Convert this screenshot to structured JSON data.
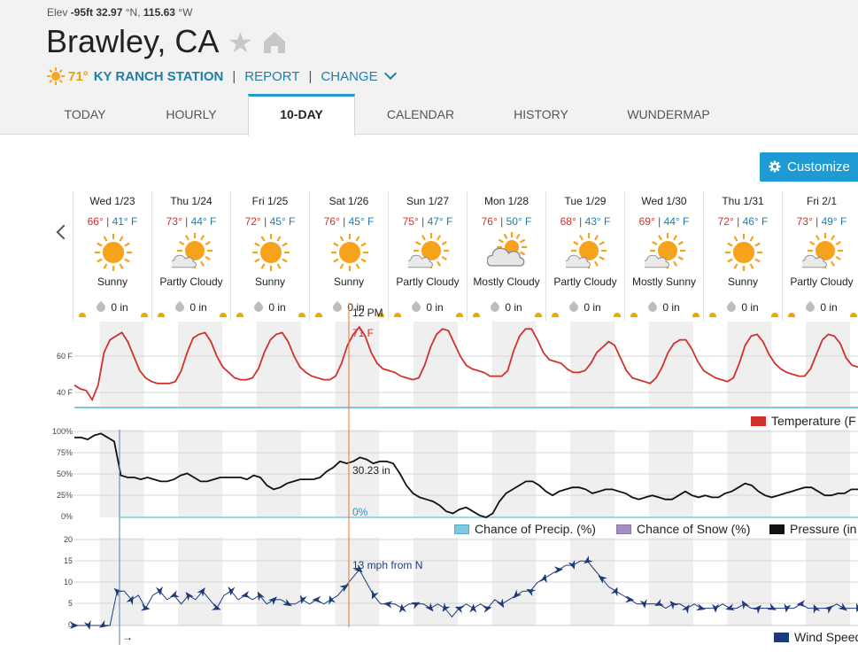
{
  "location": {
    "elev_label": "Elev",
    "elev": "-95ft",
    "lat": "32.97",
    "lat_dir": "°N,",
    "lon": "115.63",
    "lon_dir": "°W",
    "city": "Brawley, CA"
  },
  "station": {
    "temp": "71°",
    "name": "KY RANCH STATION",
    "report": "REPORT",
    "change": "CHANGE"
  },
  "tabs": [
    "TODAY",
    "HOURLY",
    "10-DAY",
    "CALENDAR",
    "HISTORY",
    "WUNDERMAP"
  ],
  "active_tab": "10-DAY",
  "customize_label": "Customize",
  "days": [
    {
      "date": "Wed 1/23",
      "hi": "66°",
      "lo": "41° F",
      "cond": "Sunny",
      "icon": "sunny-icon",
      "precip": "0 in"
    },
    {
      "date": "Thu 1/24",
      "hi": "73°",
      "lo": "44° F",
      "cond": "Partly Cloudy",
      "icon": "partly-cloudy-icon",
      "precip": "0 in"
    },
    {
      "date": "Fri 1/25",
      "hi": "72°",
      "lo": "45° F",
      "cond": "Sunny",
      "icon": "sunny-icon",
      "precip": "0 in"
    },
    {
      "date": "Sat 1/26",
      "hi": "76°",
      "lo": "45° F",
      "cond": "Sunny",
      "icon": "sunny-icon",
      "precip": "0 in"
    },
    {
      "date": "Sun 1/27",
      "hi": "75°",
      "lo": "47° F",
      "cond": "Partly Cloudy",
      "icon": "partly-cloudy-icon",
      "precip": "0 in"
    },
    {
      "date": "Mon 1/28",
      "hi": "76°",
      "lo": "50° F",
      "cond": "Mostly Cloudy",
      "icon": "mostly-cloudy-icon",
      "precip": "0 in"
    },
    {
      "date": "Tue 1/29",
      "hi": "68°",
      "lo": "43° F",
      "cond": "Partly Cloudy",
      "icon": "partly-cloudy-icon",
      "precip": "0 in"
    },
    {
      "date": "Wed 1/30",
      "hi": "69°",
      "lo": "44° F",
      "cond": "Mostly Sunny",
      "icon": "partly-cloudy-icon",
      "precip": "0 in"
    },
    {
      "date": "Thu 1/31",
      "hi": "72°",
      "lo": "46° F",
      "cond": "Sunny",
      "icon": "sunny-icon",
      "precip": "0 in"
    },
    {
      "date": "Fri 2/1",
      "hi": "73°",
      "lo": "49° F",
      "cond": "Partly Cloudy",
      "icon": "partly-cloudy-icon",
      "precip": "0 in"
    }
  ],
  "cursor": {
    "time": "12 PM",
    "temp": "71 F",
    "pressure": "30.23 in",
    "precip": "0%",
    "wind": "13 mph from N"
  },
  "arrow_glyph": "→",
  "colors": {
    "temperature": "#d0312d",
    "precip": "#7ec8e3",
    "snow": "#a58fbf",
    "pressure": "#111111",
    "wind": "#1b3a7a",
    "accent": "#1e9bd2",
    "cursor": "#e07a2a"
  },
  "legends": {
    "temperature": "Temperature (F",
    "precip": "Chance of Precip. (%)",
    "snow": "Chance of Snow (%)",
    "pressure": "Pressure (in",
    "wind": "Wind Speed"
  },
  "chart_data": [
    {
      "type": "line",
      "series": [
        {
          "name": "Temperature (F",
          "values": [
            44,
            42,
            41,
            36,
            44,
            62,
            69,
            71,
            73,
            68,
            60,
            52,
            48,
            46,
            45,
            45,
            45,
            46,
            52,
            62,
            70,
            72,
            73,
            68,
            60,
            54,
            51,
            48,
            47,
            47,
            48,
            53,
            62,
            69,
            72,
            73,
            68,
            60,
            54,
            51,
            49,
            48,
            47,
            47,
            49,
            56,
            66,
            72,
            76,
            71,
            62,
            56,
            53,
            52,
            51,
            49,
            48,
            47,
            48,
            55,
            65,
            72,
            75,
            74,
            67,
            60,
            55,
            53,
            52,
            51,
            49,
            49,
            49,
            52,
            63,
            71,
            75,
            75,
            69,
            62,
            58,
            57,
            56,
            53,
            51,
            51,
            52,
            56,
            62,
            65,
            68,
            66,
            59,
            52,
            48,
            47,
            46,
            45,
            48,
            54,
            62,
            67,
            69,
            69,
            64,
            57,
            52,
            50,
            48,
            47,
            46,
            48,
            56,
            66,
            71,
            72,
            68,
            61,
            56,
            53,
            51,
            50,
            49,
            49,
            53,
            61,
            69,
            72,
            71,
            67,
            59,
            55,
            54
          ]
        }
      ],
      "yticks": [
        "60 F",
        "40 F"
      ],
      "ylim": [
        33,
        77
      ]
    },
    {
      "type": "line",
      "series": [
        {
          "name": "Pressure (in",
          "values": [
            30.35,
            30.35,
            30.34,
            30.36,
            30.37,
            30.35,
            30.33,
            30.16,
            30.15,
            30.15,
            30.14,
            30.15,
            30.14,
            30.13,
            30.13,
            30.14,
            30.16,
            30.17,
            30.15,
            30.13,
            30.13,
            30.14,
            30.15,
            30.15,
            30.15,
            30.15,
            30.14,
            30.16,
            30.15,
            30.11,
            30.09,
            30.1,
            30.12,
            30.13,
            30.14,
            30.14,
            30.14,
            30.15,
            30.18,
            30.2,
            30.23,
            30.22,
            30.23,
            30.25,
            30.24,
            30.22,
            30.23,
            30.23,
            30.22,
            30.17,
            30.11,
            30.07,
            30.05,
            30.04,
            30.03,
            30.01,
            29.98,
            29.97,
            29.99,
            30.0,
            29.98,
            29.96,
            29.95,
            29.97,
            30.03,
            30.07,
            30.09,
            30.11,
            30.13,
            30.13,
            30.11,
            30.08,
            30.06,
            30.08,
            30.09,
            30.1,
            30.1,
            30.09,
            30.07,
            30.08,
            30.09,
            30.09,
            30.08,
            30.07,
            30.05,
            30.04,
            30.05,
            30.06,
            30.05,
            30.04,
            30.04,
            30.06,
            30.08,
            30.06,
            30.05,
            30.06,
            30.05,
            30.05,
            30.07,
            30.08,
            30.1,
            30.12,
            30.11,
            30.08,
            30.06,
            30.05,
            30.06,
            30.07,
            30.08,
            30.09,
            30.1,
            30.1,
            30.08,
            30.06,
            30.06,
            30.07,
            30.07,
            30.09,
            30.09
          ]
        },
        {
          "name": "Chance of Precip. (%)",
          "values": [
            0,
            0,
            0,
            0,
            0,
            0,
            0,
            0,
            0,
            0,
            0,
            0,
            0,
            0,
            0,
            0,
            0,
            0,
            0,
            0,
            0,
            0,
            0,
            0,
            0,
            0,
            0,
            0,
            0,
            0,
            0,
            0,
            0,
            0,
            0,
            0,
            0,
            0,
            0,
            0
          ]
        }
      ],
      "yticks": [
        "100%",
        "75%",
        "50%",
        "25%",
        "0%"
      ],
      "ylim": [
        0,
        100
      ]
    },
    {
      "type": "line",
      "series": [
        {
          "name": "Wind Speed",
          "values": [
            0,
            0,
            0,
            0,
            0,
            0,
            8,
            8,
            6,
            7,
            4,
            7,
            8,
            6,
            7,
            5,
            7,
            6,
            8,
            6,
            4,
            7,
            8,
            6,
            7,
            6,
            7,
            5,
            6,
            6,
            5,
            5,
            6,
            5,
            6,
            5,
            6,
            7,
            9,
            11,
            13,
            10,
            7,
            5,
            5,
            5,
            4,
            5,
            5,
            5,
            4,
            5,
            4,
            2,
            4,
            5,
            4,
            5,
            4,
            6,
            5,
            6,
            7,
            8,
            8,
            10,
            11,
            12,
            13,
            14,
            14,
            15,
            15,
            13,
            11,
            9,
            8,
            7,
            6,
            5,
            5,
            5,
            5,
            4,
            5,
            5,
            4,
            5,
            4,
            4,
            4,
            5,
            4,
            4,
            5,
            4,
            4,
            4,
            4,
            4,
            4,
            4,
            5,
            4,
            4,
            4,
            4,
            5,
            4,
            4,
            4
          ]
        }
      ],
      "yticks": [
        "20",
        "15",
        "10",
        "5",
        "0"
      ],
      "ylim": [
        0,
        20
      ]
    }
  ]
}
